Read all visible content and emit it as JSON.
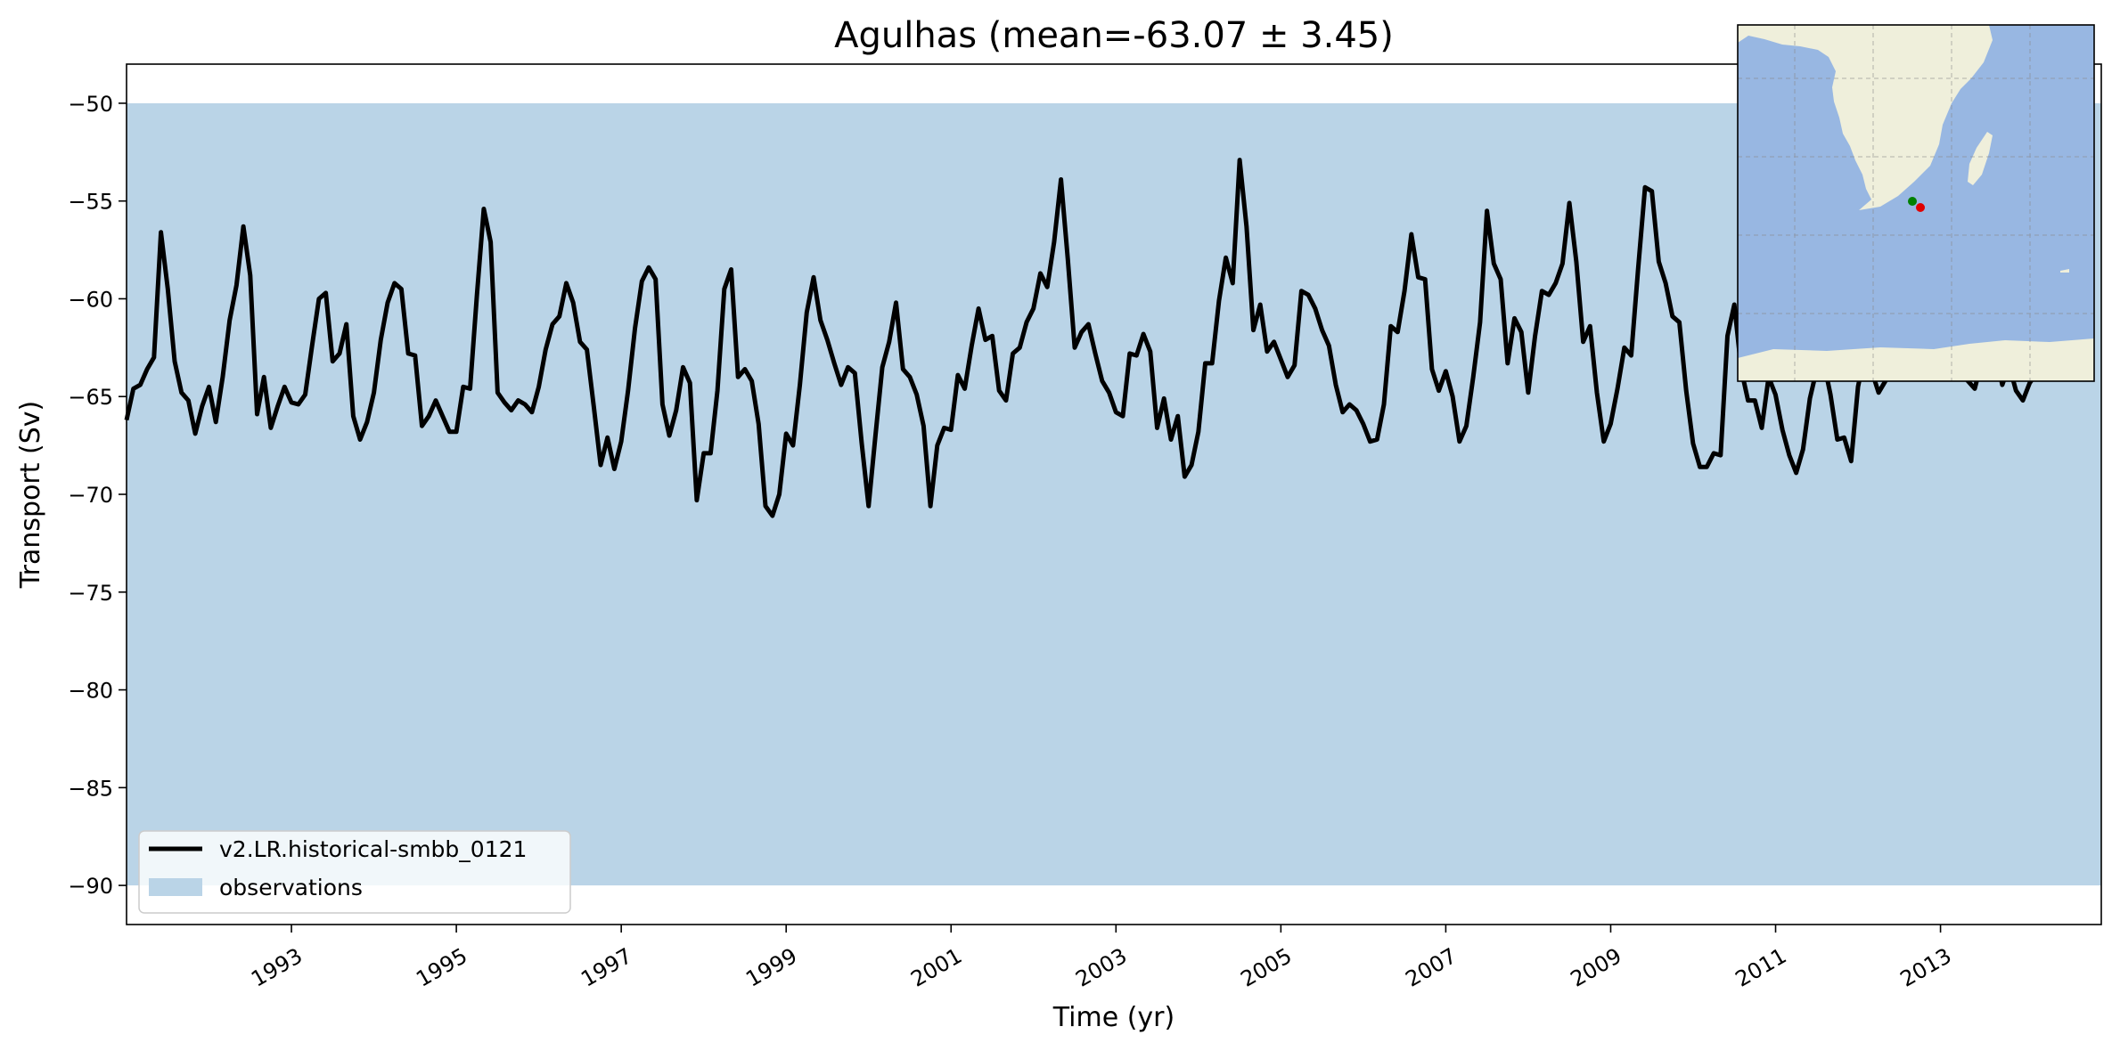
{
  "chart_data": {
    "type": "line",
    "title": "Agulhas (mean=-63.07 ± 3.45)",
    "xlabel": "Time (yr)",
    "ylabel": "Transport (Sv)",
    "xlim": [
      1991.0,
      2014.95
    ],
    "ylim": [
      -92.0,
      -48.0
    ],
    "x_ticks": [
      "1993",
      "1995",
      "1997",
      "1999",
      "2001",
      "2003",
      "2005",
      "2007",
      "2009",
      "2011",
      "2013"
    ],
    "y_ticks": [
      "−50",
      "−55",
      "−60",
      "−65",
      "−70",
      "−75",
      "−80",
      "−85",
      "−90"
    ],
    "grid": false,
    "legend_position": "lower-left",
    "observations": {
      "name": "observations",
      "ymin": -90.0,
      "ymax": -50.0,
      "color": "#bad4e7"
    },
    "series": [
      {
        "name": "v2.LR.historical-smbb_0121",
        "color": "#000000",
        "x_start": 1991.0,
        "x_step": 0.08333,
        "values": [
          -66.2,
          -64.6,
          -64.4,
          -63.6,
          -63.0,
          -56.6,
          -59.5,
          -63.2,
          -64.8,
          -65.2,
          -66.9,
          -65.5,
          -64.5,
          -66.3,
          -64.0,
          -61.1,
          -59.3,
          -56.3,
          -58.8,
          -65.9,
          -64.0,
          -66.6,
          -65.5,
          -64.5,
          -65.3,
          -65.4,
          -64.9,
          -62.4,
          -60.0,
          -59.7,
          -63.2,
          -62.8,
          -61.3,
          -66.0,
          -67.2,
          -66.3,
          -64.8,
          -62.1,
          -60.2,
          -59.2,
          -59.5,
          -62.8,
          -62.9,
          -66.5,
          -66.0,
          -65.2,
          -66.0,
          -66.8,
          -66.8,
          -64.5,
          -64.6,
          -59.8,
          -55.4,
          -57.1,
          -64.8,
          -65.3,
          -65.7,
          -65.2,
          -65.4,
          -65.8,
          -64.5,
          -62.6,
          -61.3,
          -60.9,
          -59.2,
          -60.2,
          -62.2,
          -62.6,
          -65.5,
          -68.5,
          -67.1,
          -68.7,
          -67.3,
          -64.7,
          -61.5,
          -59.1,
          -58.4,
          -59.0,
          -65.4,
          -67.0,
          -65.7,
          -63.5,
          -64.3,
          -70.3,
          -67.9,
          -67.9,
          -64.7,
          -59.5,
          -58.5,
          -64.0,
          -63.6,
          -64.2,
          -66.4,
          -70.6,
          -71.1,
          -70.0,
          -66.9,
          -67.5,
          -64.4,
          -60.7,
          -58.9,
          -61.1,
          -62.1,
          -63.3,
          -64.4,
          -63.5,
          -63.8,
          -67.4,
          -70.6,
          -67.0,
          -63.5,
          -62.2,
          -60.2,
          -63.6,
          -64.0,
          -64.9,
          -66.5,
          -70.6,
          -67.5,
          -66.6,
          -66.7,
          -63.9,
          -64.6,
          -62.4,
          -60.5,
          -62.1,
          -61.9,
          -64.7,
          -65.2,
          -62.8,
          -62.5,
          -61.2,
          -60.5,
          -58.7,
          -59.4,
          -57.1,
          -53.9,
          -58.0,
          -62.5,
          -61.7,
          -61.3,
          -62.8,
          -64.2,
          -64.8,
          -65.8,
          -66.0,
          -62.8,
          -62.9,
          -61.8,
          -62.7,
          -66.6,
          -65.1,
          -67.2,
          -66.0,
          -69.1,
          -68.5,
          -66.8,
          -63.3,
          -63.3,
          -60.1,
          -57.9,
          -59.2,
          -52.9,
          -56.3,
          -61.6,
          -60.3,
          -62.7,
          -62.2,
          -63.1,
          -64.0,
          -63.4,
          -59.6,
          -59.8,
          -60.5,
          -61.6,
          -62.4,
          -64.4,
          -65.8,
          -65.4,
          -65.7,
          -66.4,
          -67.3,
          -67.2,
          -65.4,
          -61.4,
          -61.7,
          -59.6,
          -56.7,
          -58.9,
          -59.0,
          -63.6,
          -64.7,
          -63.7,
          -65.0,
          -67.3,
          -66.5,
          -64.0,
          -61.2,
          -55.5,
          -58.2,
          -59.0,
          -63.3,
          -61.0,
          -61.7,
          -64.8,
          -61.9,
          -59.6,
          -59.8,
          -59.2,
          -58.2,
          -55.1,
          -58.1,
          -62.2,
          -61.4,
          -64.8,
          -67.3,
          -66.4,
          -64.6,
          -62.5,
          -62.9,
          -58.5,
          -54.3,
          -54.5,
          -58.1,
          -59.2,
          -60.9,
          -61.2,
          -64.7,
          -67.4,
          -68.6,
          -68.6,
          -67.9,
          -68.0,
          -61.9,
          -60.3,
          -63.6,
          -65.2,
          -65.2,
          -66.6,
          -64.0,
          -64.9,
          -66.7,
          -68.0,
          -68.9,
          -67.7,
          -65.1,
          -63.6,
          -63.2,
          -64.9,
          -67.2,
          -67.1,
          -68.3,
          -64.5,
          -62.8,
          -63.7,
          -64.8,
          -64.2,
          -61.7,
          -61.5,
          -60.6,
          -60.7,
          -61.0,
          -61.3,
          -62.4,
          -62.7,
          -63.0,
          -63.5,
          -63.8,
          -64.2,
          -64.6,
          -63.2,
          -61.9,
          -62.7,
          -64.4,
          -63.4,
          -64.7,
          -65.2,
          -64.3,
          -63.8,
          -62.9,
          -61.8,
          -61.2,
          -60.6,
          -61.0,
          -61.6
        ]
      }
    ]
  },
  "inset_map": {
    "land_color": "#efefdb",
    "ocean_color": "#98b7e2",
    "markers": [
      {
        "name": "section-start-marker",
        "color": "#008000"
      },
      {
        "name": "section-end-marker",
        "color": "#e00000"
      }
    ]
  }
}
